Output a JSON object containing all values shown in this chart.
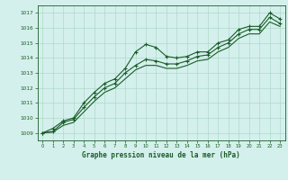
{
  "title": "Graphe pression niveau de la mer (hPa)",
  "bg_color": "#d4f0ec",
  "grid_color": "#b0d8cc",
  "line_color": "#1a5c28",
  "xlim": [
    -0.5,
    23.5
  ],
  "ylim": [
    1008.5,
    1017.5
  ],
  "yticks": [
    1009,
    1010,
    1011,
    1012,
    1013,
    1014,
    1015,
    1016,
    1017
  ],
  "xticks": [
    0,
    1,
    2,
    3,
    4,
    5,
    6,
    7,
    8,
    9,
    10,
    11,
    12,
    13,
    14,
    15,
    16,
    17,
    18,
    19,
    20,
    21,
    22,
    23
  ],
  "series1_x": [
    0,
    1,
    2,
    3,
    4,
    5,
    6,
    7,
    8,
    9,
    10,
    11,
    12,
    13,
    14,
    15,
    16,
    17,
    18,
    19,
    20,
    21,
    22,
    23
  ],
  "series1_y": [
    1009.0,
    1009.3,
    1009.8,
    1010.0,
    1011.0,
    1011.7,
    1012.3,
    1012.6,
    1013.3,
    1014.4,
    1014.9,
    1014.7,
    1014.1,
    1014.0,
    1014.1,
    1014.4,
    1014.4,
    1015.0,
    1015.2,
    1015.9,
    1016.1,
    1016.1,
    1017.0,
    1016.6
  ],
  "series2_x": [
    0,
    1,
    2,
    3,
    4,
    5,
    6,
    7,
    8,
    9,
    10,
    11,
    12,
    13,
    14,
    15,
    16,
    17,
    18,
    19,
    20,
    21,
    22,
    23
  ],
  "series2_y": [
    1009.0,
    1009.1,
    1009.7,
    1009.9,
    1010.7,
    1011.4,
    1012.0,
    1012.3,
    1013.0,
    1013.5,
    1013.9,
    1013.8,
    1013.6,
    1013.6,
    1013.8,
    1014.1,
    1014.2,
    1014.7,
    1015.0,
    1015.6,
    1015.9,
    1015.9,
    1016.7,
    1016.3
  ],
  "series3_x": [
    0,
    1,
    2,
    3,
    4,
    5,
    6,
    7,
    8,
    9,
    10,
    11,
    12,
    13,
    14,
    15,
    16,
    17,
    18,
    19,
    20,
    21,
    22,
    23
  ],
  "series3_y": [
    1009.0,
    1009.05,
    1009.5,
    1009.7,
    1010.4,
    1011.1,
    1011.7,
    1012.0,
    1012.6,
    1013.2,
    1013.5,
    1013.5,
    1013.3,
    1013.3,
    1013.5,
    1013.8,
    1013.9,
    1014.4,
    1014.7,
    1015.3,
    1015.6,
    1015.6,
    1016.4,
    1016.1
  ]
}
